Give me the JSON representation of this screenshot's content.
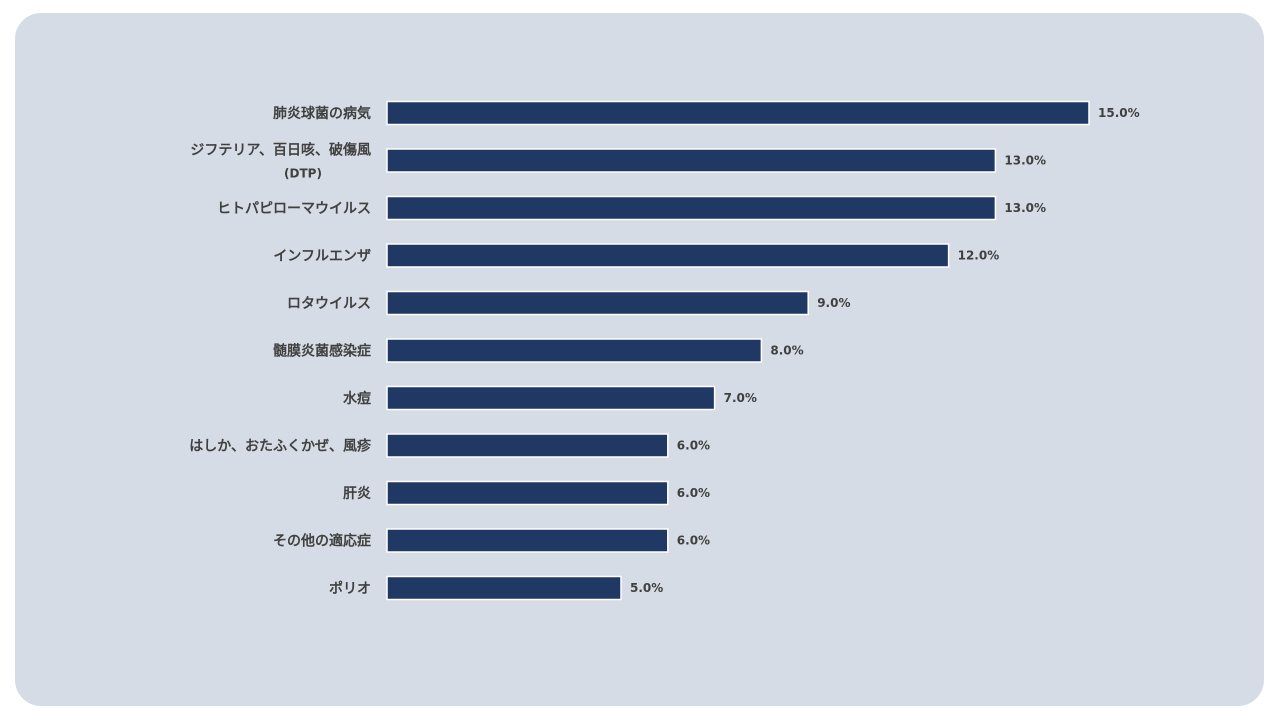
{
  "chart_data": {
    "type": "bar",
    "orientation": "horizontal",
    "title": "",
    "xlabel": "",
    "ylabel": "",
    "xlim": [
      0,
      15
    ],
    "grid": false,
    "legend": "none",
    "bar_color": "#1f3864",
    "background_color": "#d6dce5",
    "categories": [
      [
        "肺炎球菌の病気"
      ],
      [
        "ジフテリア、百日咳、破傷風",
        "(DTP)"
      ],
      [
        "ヒトパピローマウイルス"
      ],
      [
        "インフルエンザ"
      ],
      [
        "ロタウイルス"
      ],
      [
        "髄膜炎菌感染症"
      ],
      [
        "水痘"
      ],
      [
        "はしか、おたふくかぜ、風疹"
      ],
      [
        "肝炎"
      ],
      [
        "その他の適応症"
      ],
      [
        "ポリオ"
      ]
    ],
    "values": [
      15.0,
      13.0,
      13.0,
      12.0,
      9.0,
      8.0,
      7.0,
      6.0,
      6.0,
      6.0,
      5.0
    ],
    "value_labels": [
      "15.0%",
      "13.0%",
      "13.0%",
      "12.0%",
      "9.0%",
      "8.0%",
      "7.0%",
      "6.0%",
      "6.0%",
      "6.0%",
      "5.0%"
    ]
  }
}
